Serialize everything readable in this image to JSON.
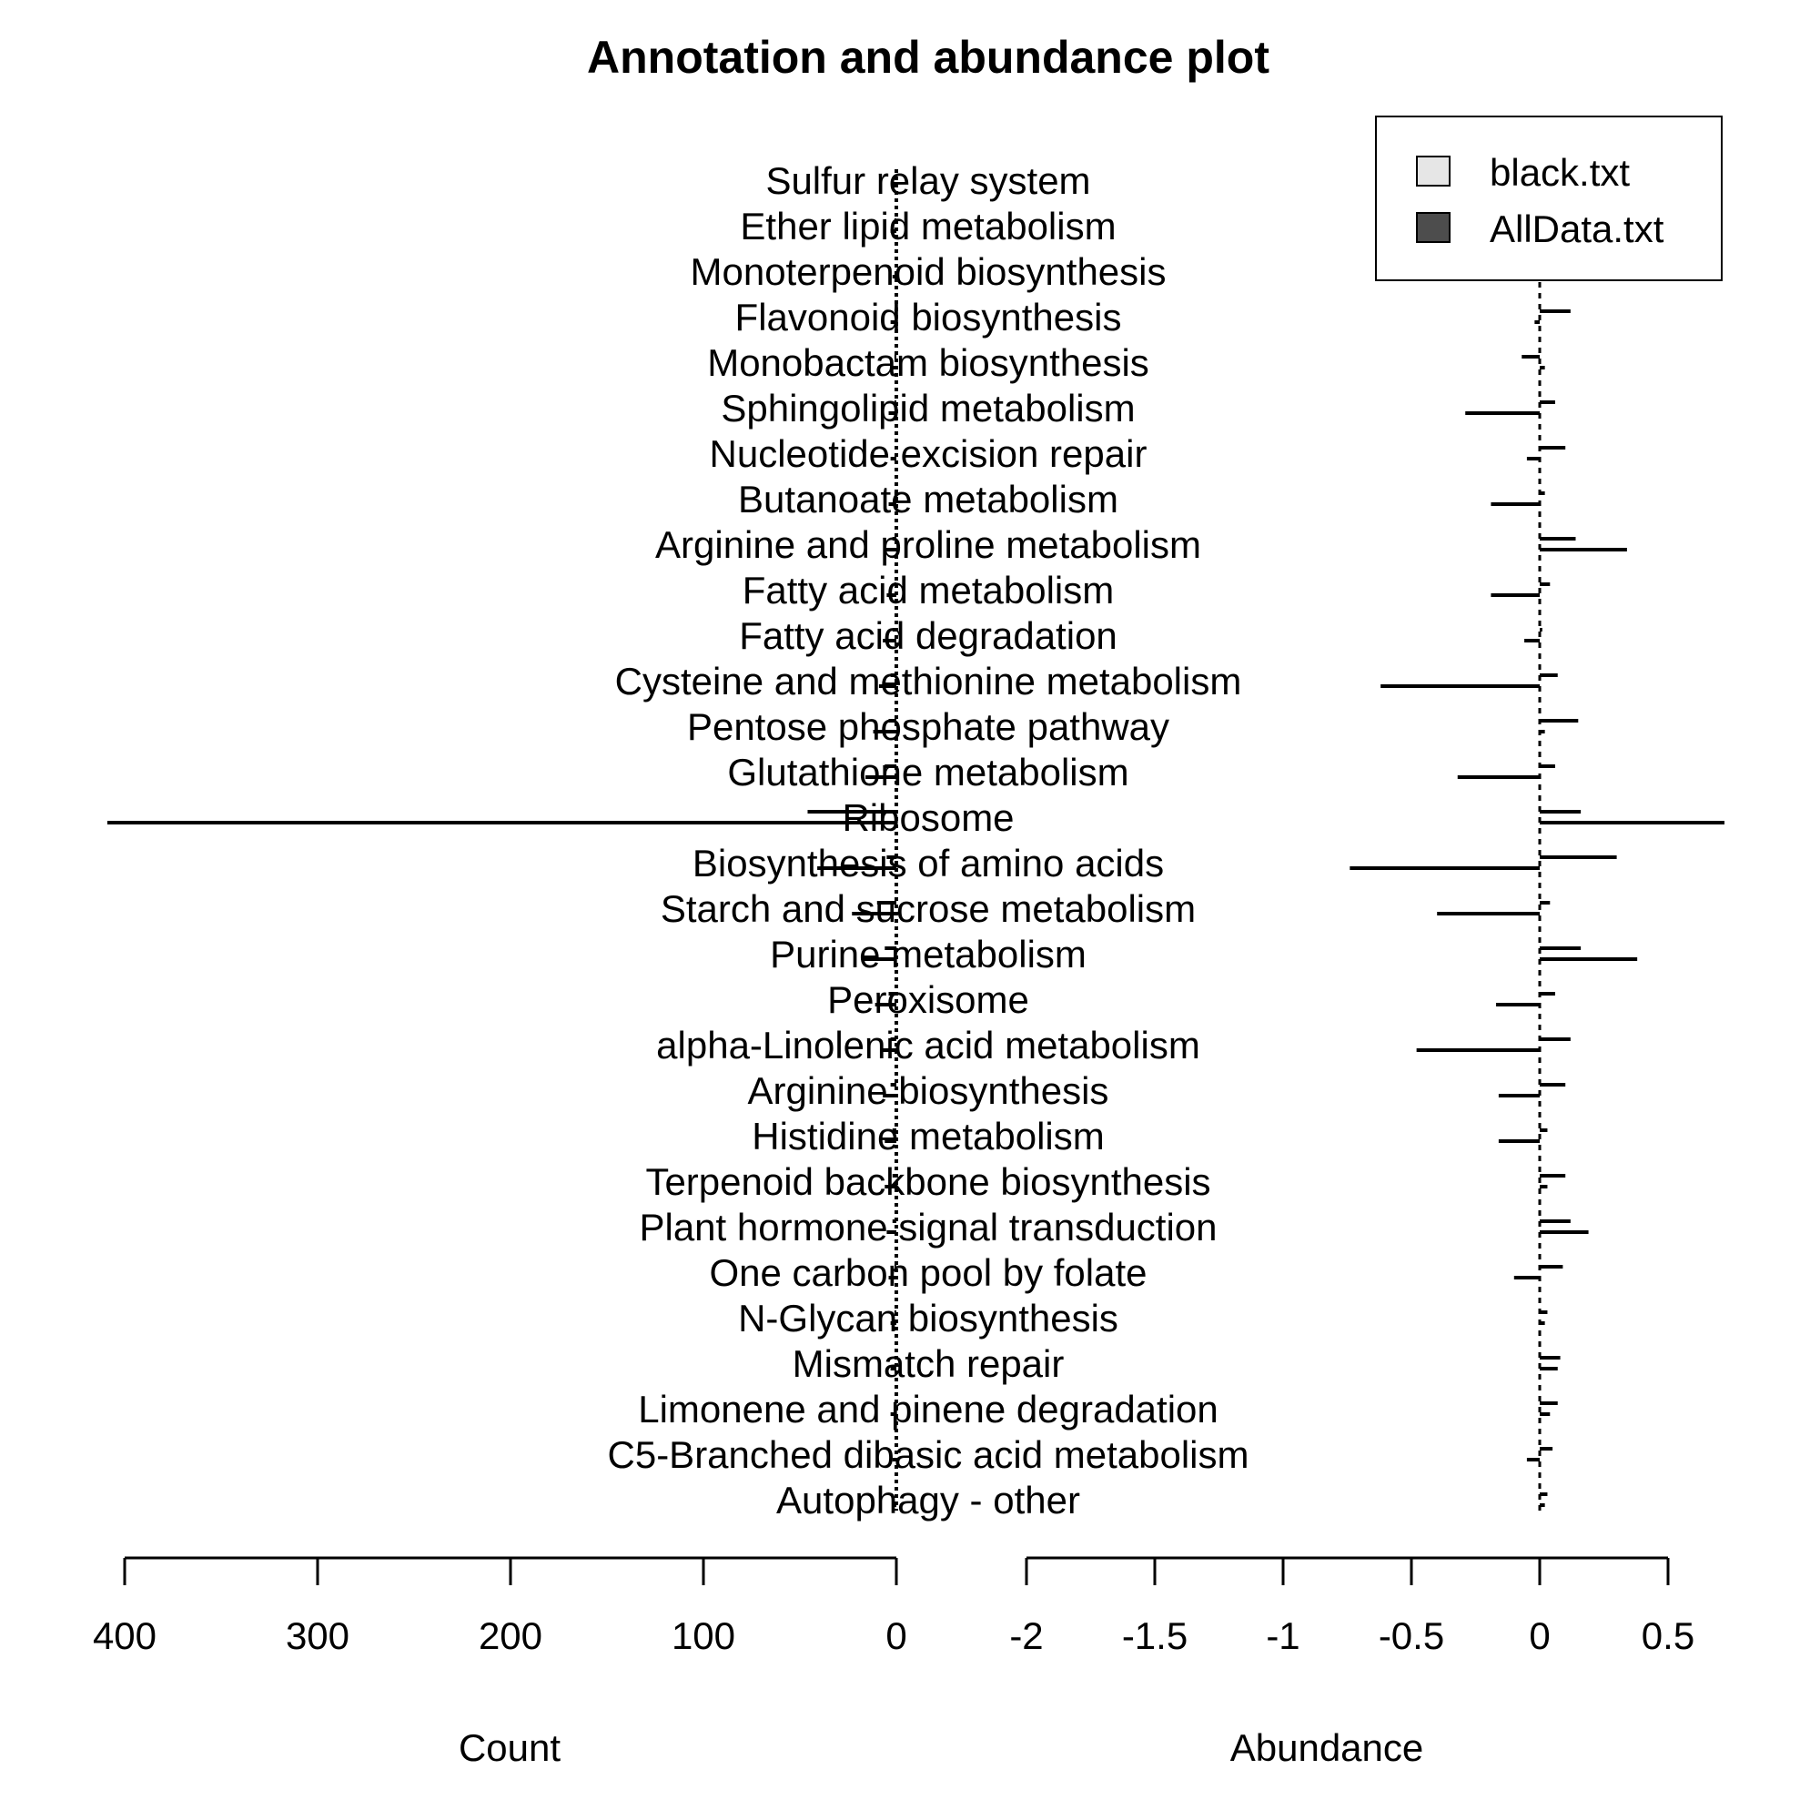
{
  "chart_data": {
    "type": "bar",
    "title": "Annotation and abundance plot",
    "categories": [
      "Sulfur relay system",
      "Ether lipid metabolism",
      "Monoterpenoid biosynthesis",
      "Flavonoid biosynthesis",
      "Monobactam biosynthesis",
      "Sphingolipid metabolism",
      "Nucleotide excision repair",
      "Butanoate metabolism",
      "Arginine and proline metabolism",
      "Fatty acid metabolism",
      "Fatty acid degradation",
      "Cysteine and methionine metabolism",
      "Pentose phosphate pathway",
      "Glutathione metabolism",
      "Ribosome",
      "Biosynthesis of amino acids",
      "Starch and sucrose metabolism",
      "Purine metabolism",
      "Peroxisome",
      "alpha-Linolenic acid metabolism",
      "Arginine biosynthesis",
      "Histidine metabolism",
      "Terpenoid backbone biosynthesis",
      "Plant hormone signal transduction",
      "One carbon pool by folate",
      "N-Glycan biosynthesis",
      "Mismatch repair",
      "Limonene and pinene degradation",
      "C5-Branched dibasic acid metabolism",
      "Autophagy - other"
    ],
    "count_panel": {
      "xlabel": "Count",
      "xlim": [
        400,
        0
      ],
      "ticks": [
        "400",
        "300",
        "200",
        "100",
        "0"
      ]
    },
    "abundance_panel": {
      "xlabel": "Abundance",
      "xlim": [
        -2,
        0.5
      ],
      "ticks": [
        "-2",
        "-1.5",
        "-1",
        "-0.5",
        "0",
        "0.5"
      ]
    },
    "legend": {
      "position": "top-right",
      "entries": [
        {
          "label": "black.txt",
          "color": "#e6e6e6"
        },
        {
          "label": "AllData.txt",
          "color": "#4d4d4d"
        }
      ]
    },
    "series": [
      {
        "name": "black.txt",
        "count": [
          0,
          1,
          0,
          1,
          1,
          1,
          0,
          1,
          2,
          1,
          2,
          3,
          4,
          6,
          46,
          5,
          10,
          6,
          4,
          3,
          3,
          2,
          2,
          2,
          1,
          1,
          1,
          1,
          0,
          0
        ],
        "abundance": [
          0.06,
          0.05,
          0.08,
          0.12,
          -0.07,
          0.06,
          0.1,
          0.02,
          0.14,
          0.04,
          0.01,
          0.07,
          0.15,
          0.06,
          0.16,
          0.3,
          0.04,
          0.16,
          0.06,
          0.12,
          0.1,
          0.03,
          0.1,
          0.12,
          0.09,
          0.03,
          0.08,
          0.07,
          0.05,
          0.03
        ]
      },
      {
        "name": "AllData.txt",
        "count": [
          2,
          3,
          2,
          3,
          3,
          4,
          3,
          4,
          6,
          5,
          7,
          9,
          12,
          16,
          409,
          41,
          23,
          18,
          11,
          8,
          7,
          6,
          6,
          5,
          4,
          3,
          3,
          3,
          2,
          2
        ],
        "abundance": [
          0.02,
          -0.01,
          0.03,
          -0.02,
          0.02,
          -0.29,
          -0.05,
          -0.19,
          0.34,
          -0.19,
          -0.06,
          -0.62,
          0.02,
          -0.32,
          0.72,
          -0.74,
          -0.4,
          0.38,
          -0.17,
          -0.48,
          -0.16,
          -0.16,
          0.03,
          0.19,
          -0.1,
          0.02,
          0.07,
          0.04,
          -0.05,
          0.02
        ]
      }
    ]
  }
}
